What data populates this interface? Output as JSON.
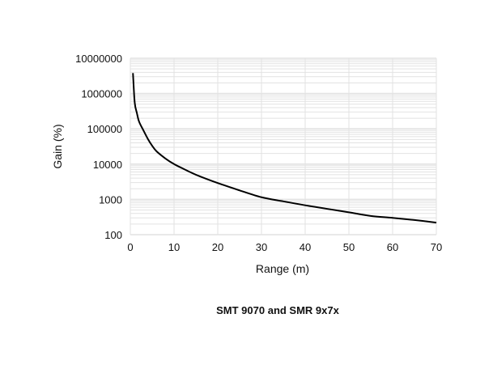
{
  "chart_data": {
    "type": "line",
    "title": "SMT 9070 and SMR 9x7x",
    "xlabel": "Range (m)",
    "ylabel": "Gain (%)",
    "xlim": [
      0,
      70
    ],
    "ylim": [
      100,
      10000000
    ],
    "yscale": "log",
    "grid": true,
    "x_ticks": [
      "0",
      "10",
      "20",
      "30",
      "40",
      "50",
      "60",
      "70"
    ],
    "y_ticks": [
      "100",
      "1000",
      "10000",
      "100000",
      "1000000",
      "10000000"
    ],
    "line_color": "#000000",
    "grid_color": "#e2e2e2",
    "series": [
      {
        "x": [
          0.6,
          1,
          1.5,
          2,
          3,
          4,
          5,
          6,
          8,
          10,
          12,
          15,
          20,
          25,
          30,
          35,
          40,
          45,
          50,
          55,
          60,
          65,
          70
        ],
        "y": [
          3800000,
          560000,
          280000,
          160000,
          90000,
          52000,
          33000,
          23000,
          14500,
          10000,
          7500,
          5000,
          2900,
          1800,
          1150,
          880,
          680,
          540,
          430,
          340,
          300,
          260,
          220
        ]
      }
    ]
  }
}
